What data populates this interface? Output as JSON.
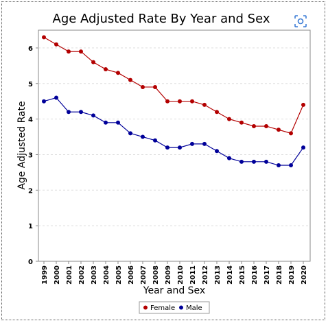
{
  "chart_data": {
    "type": "line",
    "title": "Age Adjusted Rate By Year and Sex",
    "xlabel": "Year and Sex",
    "ylabel": "Age Adjusted Rate",
    "ylim": [
      0,
      6.5
    ],
    "yticks": [
      "0",
      "1",
      "2",
      "3",
      "4",
      "5",
      "6"
    ],
    "grid": true,
    "legend_position": "bottom",
    "categories": [
      "1999",
      "2000",
      "2001",
      "2002",
      "2003",
      "2004",
      "2005",
      "2006",
      "2007",
      "2008",
      "2009",
      "2010",
      "2011",
      "2012",
      "2013",
      "2014",
      "2015",
      "2016",
      "2017",
      "2018",
      "2019",
      "2020"
    ],
    "series": [
      {
        "name": "Female",
        "color": "#b30000",
        "values": [
          6.3,
          6.1,
          5.9,
          5.9,
          5.6,
          5.4,
          5.3,
          5.1,
          4.9,
          4.9,
          4.5,
          4.5,
          4.5,
          4.4,
          4.2,
          4.0,
          3.9,
          3.8,
          3.8,
          3.7,
          3.6,
          4.4
        ]
      },
      {
        "name": "Male",
        "color": "#000099",
        "values": [
          4.5,
          4.6,
          4.2,
          4.2,
          4.1,
          3.9,
          3.9,
          3.6,
          3.5,
          3.4,
          3.2,
          3.2,
          3.3,
          3.3,
          3.1,
          2.9,
          2.8,
          2.8,
          2.8,
          2.7,
          2.7,
          3.2
        ]
      }
    ]
  },
  "toolbar": {
    "camera_icon": "camera-scan-icon"
  }
}
